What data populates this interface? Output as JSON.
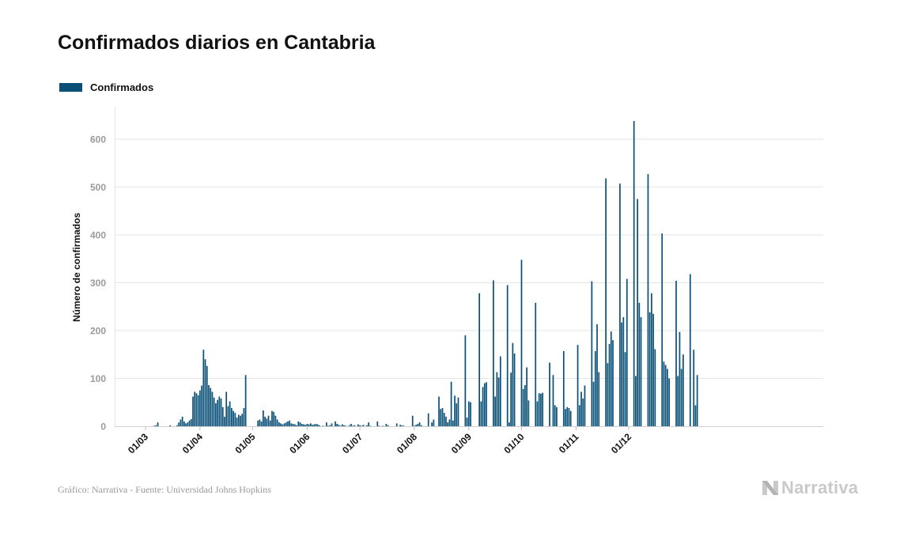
{
  "header": {
    "title": "Confirmados diarios en Cantabria"
  },
  "legend": {
    "label": "Confirmados"
  },
  "footer": {
    "source": "Gráfico: Narrativa - Fuente: Universidad Johns Hopkins",
    "brand": "Narrativa"
  },
  "colors": {
    "bar": "#0b5177",
    "grid": "#e6e6e6",
    "tick": "#9a9a9a",
    "brand": "#c9c9c9"
  },
  "icons": {
    "brand_logo": "narrativa-n-icon"
  },
  "chart_data": {
    "type": "bar",
    "title": "Confirmados diarios en Cantabria",
    "xlabel": "",
    "ylabel": "Número de confirmados",
    "ylim": [
      0,
      670
    ],
    "yticks": [
      0,
      100,
      200,
      300,
      400,
      500,
      600
    ],
    "grid": true,
    "legend_position": "top-left",
    "x_start": "2020-03-01",
    "xticks": [
      "01/03",
      "01/04",
      "01/05",
      "01/06",
      "01/07",
      "01/08",
      "01/09",
      "01/10",
      "01/11",
      "01/12"
    ],
    "xtick_dates": [
      "2020-03-01",
      "2020-04-01",
      "2020-05-01",
      "2020-06-01",
      "2020-07-01",
      "2020-08-01",
      "2020-09-01",
      "2020-10-01",
      "2020-11-01",
      "2020-12-01"
    ],
    "series": [
      {
        "name": "Confirmados",
        "values": [
          0,
          0,
          0,
          0,
          0,
          1,
          2,
          8,
          0,
          0,
          0,
          0,
          0,
          0,
          2,
          0,
          0,
          0,
          2,
          8,
          14,
          20,
          10,
          6,
          8,
          12,
          15,
          62,
          72,
          69,
          65,
          75,
          85,
          160,
          140,
          126,
          86,
          80,
          72,
          60,
          48,
          55,
          62,
          58,
          40,
          20,
          72,
          42,
          52,
          38,
          32,
          28,
          18,
          24,
          22,
          26,
          38,
          107,
          0,
          0,
          0,
          0,
          0,
          0,
          12,
          14,
          10,
          33,
          20,
          16,
          22,
          12,
          32,
          30,
          22,
          14,
          8,
          6,
          4,
          6,
          8,
          10,
          12,
          6,
          5,
          4,
          2,
          10,
          8,
          5,
          4,
          3,
          5,
          4,
          6,
          3,
          4,
          5,
          4,
          2,
          0,
          1,
          0,
          8,
          1,
          2,
          6,
          0,
          10,
          5,
          3,
          1,
          4,
          2,
          1,
          0,
          2,
          5,
          1,
          2,
          0,
          4,
          2,
          1,
          3,
          0,
          2,
          8,
          1,
          0,
          0,
          0,
          10,
          1,
          0,
          1,
          0,
          5,
          2,
          0,
          0,
          0,
          0,
          6,
          0,
          3,
          2,
          1,
          0,
          0,
          0,
          0,
          22,
          1,
          3,
          5,
          8,
          2,
          0,
          0,
          0,
          27,
          0,
          8,
          14,
          0,
          0,
          62,
          36,
          38,
          28,
          20,
          8,
          14,
          93,
          12,
          64,
          48,
          60,
          0,
          0,
          0,
          190,
          18,
          52,
          50,
          0,
          0,
          0,
          0,
          278,
          52,
          82,
          90,
          92,
          0,
          0,
          0,
          305,
          62,
          113,
          102,
          146,
          0,
          0,
          0,
          295,
          8,
          112,
          174,
          152,
          0,
          0,
          0,
          348,
          78,
          86,
          123,
          54,
          0,
          0,
          0,
          258,
          52,
          69,
          68,
          70,
          0,
          0,
          0,
          133,
          0,
          107,
          44,
          40,
          0,
          0,
          0,
          157,
          36,
          40,
          38,
          32,
          0,
          0,
          0,
          170,
          44,
          72,
          58,
          85,
          0,
          0,
          0,
          303,
          93,
          157,
          213,
          113,
          0,
          0,
          0,
          518,
          132,
          172,
          198,
          180,
          0,
          0,
          0,
          507,
          217,
          228,
          155,
          308,
          0,
          0,
          0,
          638,
          105,
          475,
          258,
          228,
          0,
          0,
          0,
          527,
          238,
          278,
          235,
          161,
          0,
          0,
          0,
          403,
          135,
          128,
          120,
          100,
          0,
          0,
          0,
          304,
          105,
          197,
          120,
          150,
          0,
          0,
          0,
          318,
          0,
          160,
          44,
          107
        ]
      }
    ]
  }
}
